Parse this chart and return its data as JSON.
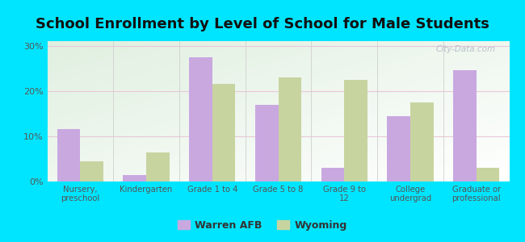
{
  "title": "School Enrollment by Level of School for Male Students",
  "categories": [
    "Nursery,\npreschool",
    "Kindergarten",
    "Grade 1 to 4",
    "Grade 5 to 8",
    "Grade 9 to\n12",
    "College\nundergrad",
    "Graduate or\nprofessional"
  ],
  "warren_afb": [
    11.5,
    1.5,
    27.5,
    17.0,
    3.0,
    14.5,
    24.5
  ],
  "wyoming": [
    4.5,
    6.5,
    21.5,
    23.0,
    22.5,
    17.5,
    3.0
  ],
  "warren_color": "#c9a8e0",
  "wyoming_color": "#c8d4a0",
  "background_outer": "#00e5ff",
  "title_fontsize": 13,
  "ylabel_ticks": [
    "0%",
    "10%",
    "20%",
    "30%"
  ],
  "yticks": [
    0,
    10,
    20,
    30
  ],
  "ylim": [
    0,
    31
  ],
  "bar_width": 0.35,
  "legend_labels": [
    "Warren AFB",
    "Wyoming"
  ],
  "watermark": "City-Data.com",
  "grid_color": "#e8c8d8",
  "separator_color": "#d0d0d0"
}
